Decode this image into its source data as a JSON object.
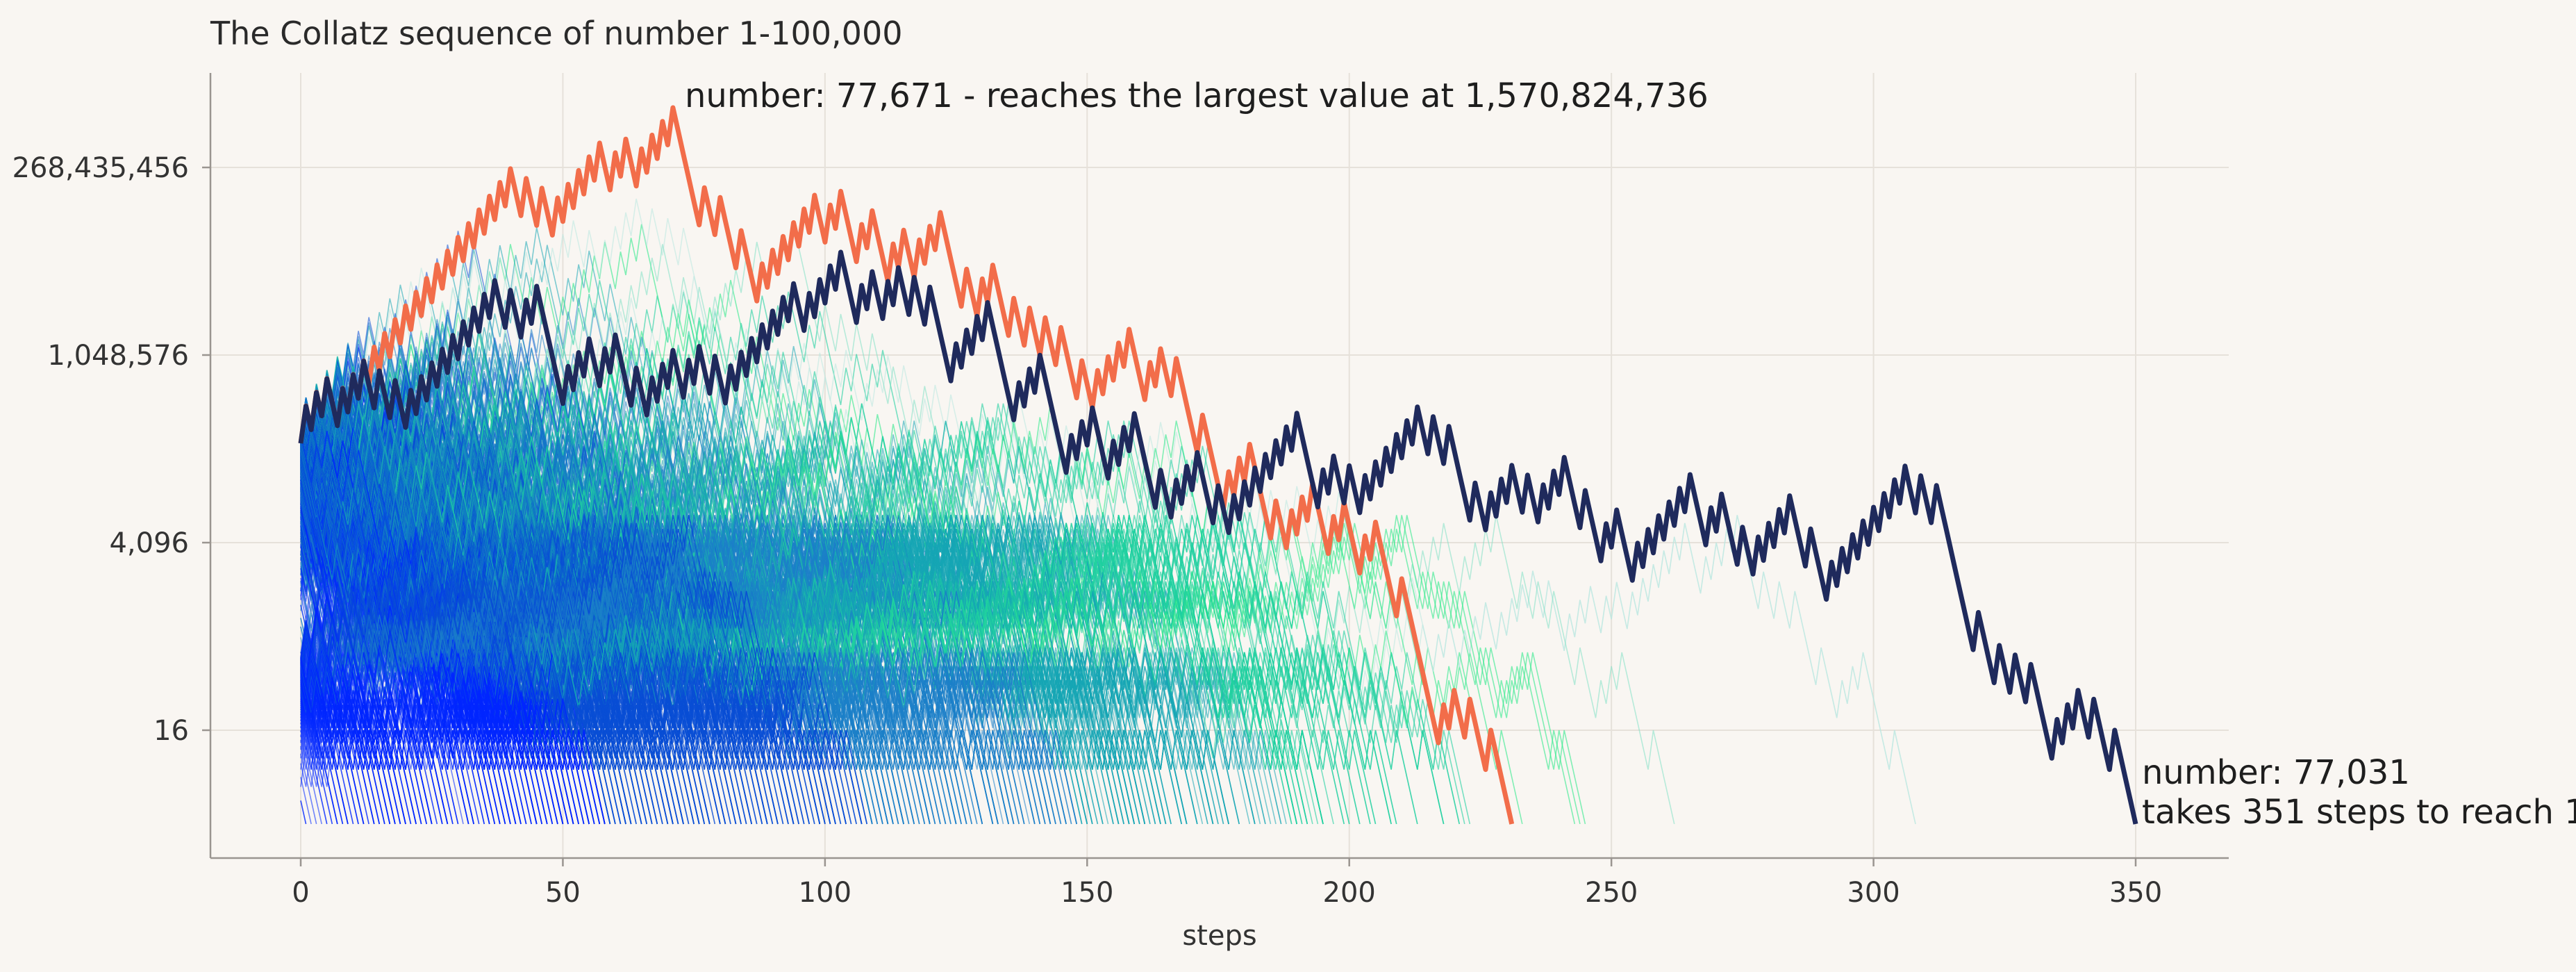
{
  "chart_data": {
    "type": "line",
    "title": "The Collatz sequence of number 1-100,000",
    "xlabel": "steps",
    "ylabel": "",
    "x_ticks": [
      0,
      50,
      100,
      150,
      200,
      250,
      300,
      350
    ],
    "x_tick_labels": [
      "0",
      "50",
      "100",
      "150",
      "200",
      "250",
      "300",
      "350"
    ],
    "y_scale": "log2",
    "y_ticks": [
      16,
      4096,
      1048576,
      268435456
    ],
    "y_tick_labels": [
      "16",
      "4,096",
      "1,048,576",
      "268,435,456"
    ],
    "xlim": [
      -17,
      367
    ],
    "ylim": [
      0.3,
      3000000000
    ],
    "grid": true,
    "background_cloud": {
      "description_series_count": 100000,
      "colors": [
        "#0026ff",
        "#0a4fd6",
        "#1b7fc9",
        "#16a5b5",
        "#1fd1a0",
        "#2eea8a",
        "#7fe0c4",
        "#b9e8e0",
        "#c8c8ef"
      ]
    },
    "series": [
      {
        "start": 77671,
        "steps": 231,
        "max": 1570824736,
        "color": "#f26d4a"
      },
      {
        "start": 77031,
        "steps": 351,
        "color": "#1f2a5c"
      }
    ],
    "annotations": [
      {
        "text": "number: 77,671 - reaches the largest value at 1,570,824,736",
        "series": 0
      },
      {
        "text_line1": "number: 77,031",
        "text_line2": "takes 351 steps to reach 1",
        "series": 1
      }
    ]
  },
  "colors": {
    "background": "#f9f6f2",
    "highlight_max": "#f26d4a",
    "highlight_longest": "#1f2a5c"
  }
}
